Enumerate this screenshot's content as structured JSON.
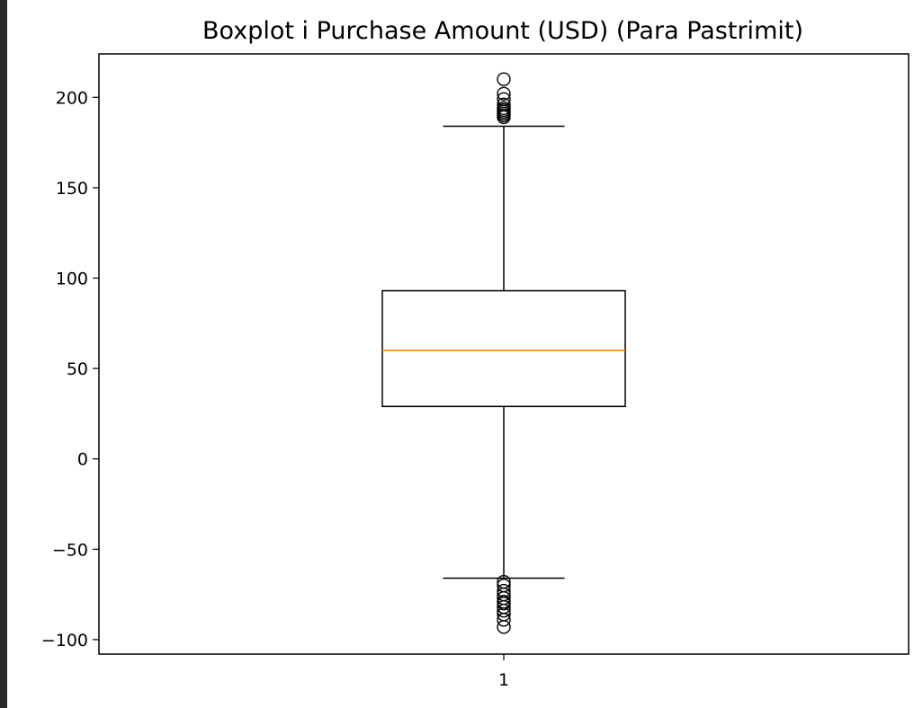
{
  "chart_data": {
    "type": "boxplot",
    "title": "Boxplot i Purchase Amount (USD) (Para Pastrimit)",
    "xlabel": "",
    "ylabel": "",
    "categories": [
      "1"
    ],
    "yticks": [
      -100,
      -50,
      0,
      50,
      100,
      150,
      200
    ],
    "ytick_labels": [
      "−100",
      "−50",
      "0",
      "50",
      "100",
      "150",
      "200"
    ],
    "ylim": [
      -108,
      224
    ],
    "xlim": [
      0.5,
      1.5
    ],
    "box": {
      "q1": 29,
      "median": 60,
      "q3": 93,
      "whisker_low": -66,
      "whisker_high": 184
    },
    "outliers": [
      210,
      202,
      199,
      196,
      194,
      193,
      192,
      191,
      190,
      189,
      -68,
      -70,
      -73,
      -75,
      -77,
      -79,
      -80,
      -82,
      -84,
      -86,
      -89,
      -93
    ],
    "colors": {
      "box": "#000000",
      "median": "#ff7f0e",
      "whisker": "#000000",
      "outlier": "#000000",
      "background": "#ffffff",
      "left_strip": "#2b2b2b"
    },
    "grid": false,
    "legend": "none"
  }
}
